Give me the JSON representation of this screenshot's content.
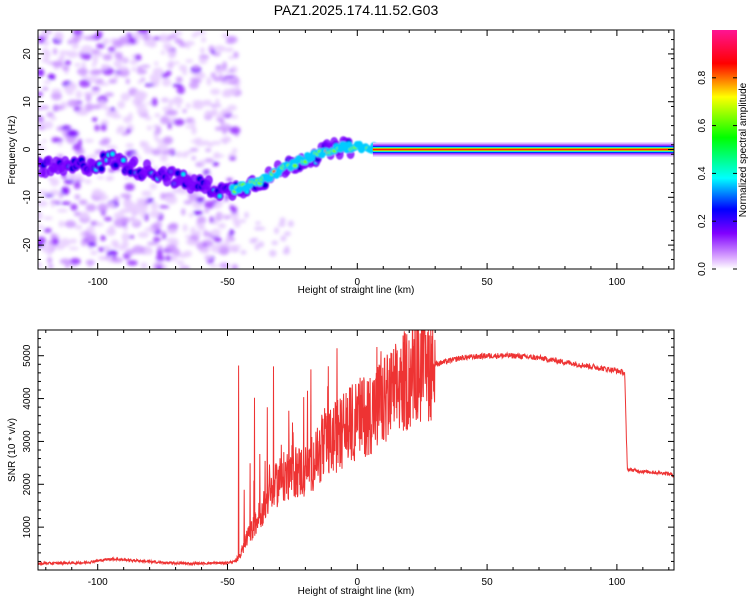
{
  "figure": {
    "title": "PAZ1.2025.174.11.52.G03"
  },
  "chart_data": [
    {
      "type": "heatmap",
      "title": "PAZ1.2025.174.11.52.G03",
      "xlabel": "Height of straight line (km)",
      "ylabel": "Frequency (Hz)",
      "xlim": [
        -123,
        122
      ],
      "ylim": [
        -25,
        25
      ],
      "x_ticks": [
        -100,
        -50,
        0,
        50,
        100
      ],
      "y_ticks": [
        -20,
        -10,
        0,
        10,
        20
      ],
      "colorbar": {
        "label": "Normalized spectral amplitude",
        "range": [
          0,
          1
        ],
        "ticks": [
          0.0,
          0.2,
          0.4,
          0.6,
          0.8
        ],
        "colormap": [
          "#ffffff",
          "#8000ff",
          "#0000ff",
          "#00ffff",
          "#00ff00",
          "#ffff00",
          "#ff0000",
          "#ff1493"
        ]
      },
      "ridge": {
        "x": [
          -123,
          -115,
          -108,
          -100,
          -95,
          -90,
          -85,
          -80,
          -75,
          -70,
          -65,
          -60,
          -55,
          -50,
          -48,
          -45,
          -40,
          -35,
          -30,
          -25,
          -20,
          -15,
          -10,
          -5,
          0,
          5,
          10,
          20,
          50,
          100,
          122
        ],
        "frequency": [
          -3.5,
          -4,
          -3.5,
          -3,
          -2,
          -3,
          -4,
          -4.5,
          -5,
          -6,
          -7,
          -7.5,
          -8,
          -9,
          -8.5,
          -8,
          -7,
          -6,
          -4.5,
          -3,
          -2,
          -1,
          0,
          0.5,
          0.5,
          0.3,
          0.2,
          0,
          0,
          0,
          0
        ]
      },
      "grid": false
    },
    {
      "type": "line",
      "xlabel": "Height of straight line (km)",
      "ylabel": "SNR (10 * v/v)",
      "xlim": [
        -123,
        122
      ],
      "ylim": [
        0,
        5600
      ],
      "x_ticks": [
        -100,
        -50,
        0,
        50,
        100
      ],
      "y_ticks": [
        1000,
        2000,
        3000,
        4000,
        5000
      ],
      "series": [
        {
          "color": "#ee3333",
          "x": [
            -123,
            -115,
            -105,
            -95,
            -85,
            -75,
            -65,
            -55,
            -50,
            -47,
            -45,
            -43,
            -40,
            -35,
            -30,
            -25,
            -20,
            -15,
            -10,
            -5,
            0,
            5,
            10,
            15,
            20,
            25,
            30,
            40,
            50,
            60,
            70,
            80,
            90,
            100,
            103,
            104,
            110,
            120,
            122
          ],
          "y": [
            150,
            160,
            170,
            260,
            220,
            170,
            150,
            160,
            170,
            200,
            350,
            700,
            1000,
            1600,
            2100,
            2300,
            2300,
            2700,
            3000,
            3300,
            3500,
            3700,
            3900,
            4200,
            4500,
            4700,
            4800,
            4950,
            5000,
            5000,
            4950,
            4850,
            4750,
            4650,
            4600,
            2350,
            2300,
            2250,
            2200
          ]
        }
      ],
      "grid": false
    }
  ]
}
